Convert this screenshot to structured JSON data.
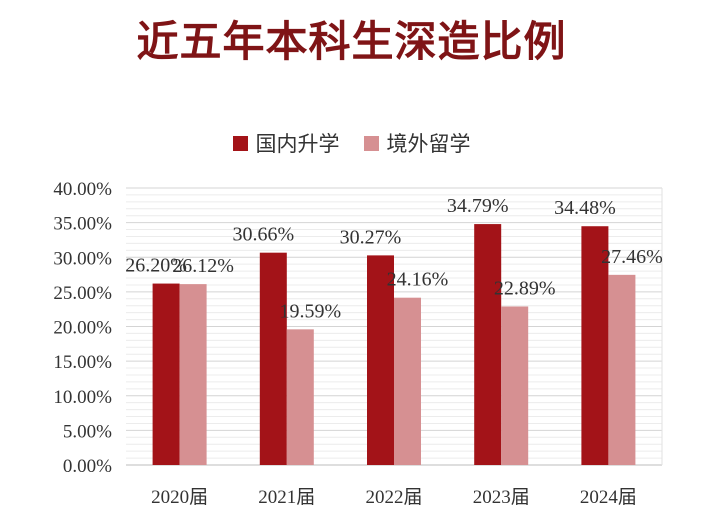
{
  "title": "近五年本科生深造比例",
  "chart_data": {
    "type": "bar",
    "categories": [
      "2020届",
      "2021届",
      "2022届",
      "2023届",
      "2024届"
    ],
    "series": [
      {
        "name": "国内升学",
        "color": "#a31318",
        "values": [
          26.2,
          30.66,
          30.27,
          34.79,
          34.48
        ],
        "labels": [
          "26.20%",
          "30.66%",
          "30.27%",
          "34.79%",
          "34.48%"
        ]
      },
      {
        "name": "境外留学",
        "color": "#d69092",
        "values": [
          26.12,
          19.59,
          24.16,
          22.89,
          27.46
        ],
        "labels": [
          "26.12%",
          "19.59%",
          "24.16%",
          "22.89%",
          "27.46%"
        ]
      }
    ],
    "ylim": [
      0,
      40
    ],
    "yticks": [
      "0.00%",
      "5.00%",
      "10.00%",
      "15.00%",
      "20.00%",
      "25.00%",
      "30.00%",
      "35.00%",
      "40.00%"
    ],
    "grid": true,
    "legend": "top-center"
  }
}
